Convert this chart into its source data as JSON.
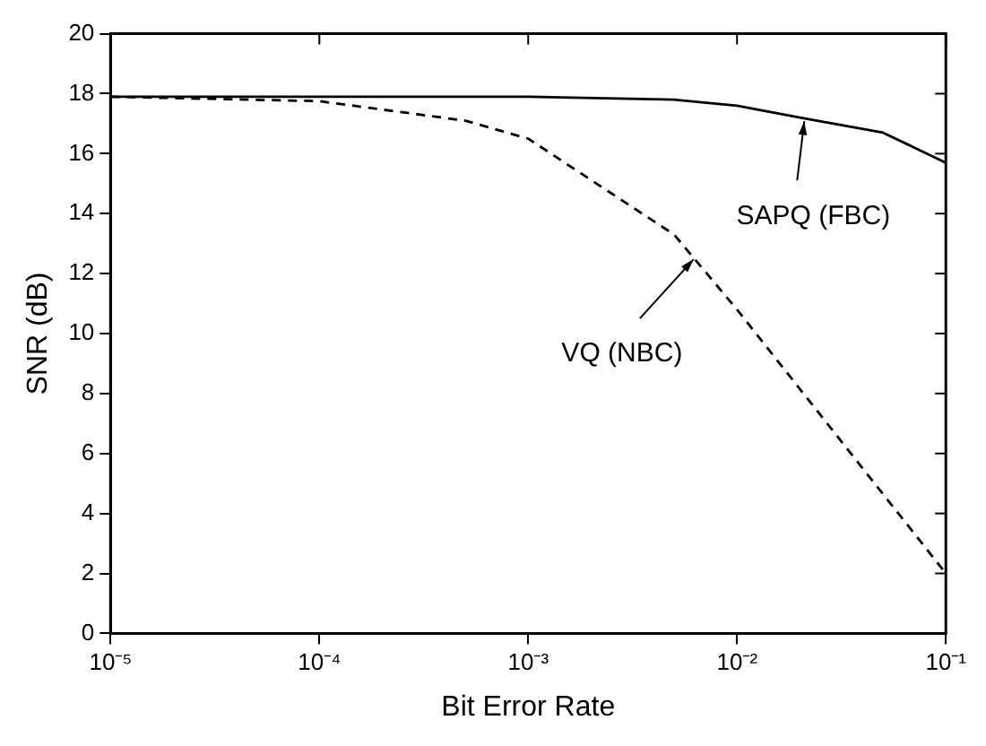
{
  "chart_data": {
    "type": "line",
    "xlabel": "Bit Error Rate",
    "ylabel": "SNR (dB)",
    "log": "x",
    "grid": false,
    "legend": false,
    "marker": "none",
    "xlim": [
      1e-05,
      0.1
    ],
    "ylim": [
      0,
      20
    ],
    "xticks": [
      {
        "value": 1e-05,
        "label": "10⁻⁵"
      },
      {
        "value": 0.0001,
        "label": "10⁻⁴"
      },
      {
        "value": 0.001,
        "label": "10⁻³"
      },
      {
        "value": 0.01,
        "label": "10⁻²"
      },
      {
        "value": 0.1,
        "label": "10⁻¹"
      }
    ],
    "yticks": [
      0,
      2,
      4,
      6,
      8,
      10,
      12,
      14,
      16,
      18,
      20
    ],
    "series": [
      {
        "color": "#000000",
        "line_style": "solid",
        "x": [
          1e-05,
          0.0001,
          0.001,
          0.005,
          0.01,
          0.02,
          0.05,
          0.1
        ],
        "values": [
          17.9,
          17.9,
          17.9,
          17.8,
          17.6,
          17.2,
          16.7,
          15.7
        ]
      },
      {
        "color": "#000000",
        "line_style": "dashed",
        "x": [
          1e-05,
          0.0001,
          0.0005,
          0.001,
          0.005,
          0.01,
          0.04,
          0.1
        ],
        "values": [
          17.9,
          17.75,
          17.1,
          16.5,
          13.3,
          10.8,
          5.5,
          2.0
        ]
      }
    ],
    "annotations": [
      {
        "text": "SAPQ (FBC)",
        "x": 0.021,
        "y": 17.2
      },
      {
        "text": "VQ (NBC)",
        "x": 0.0062,
        "y": 12.6
      }
    ]
  }
}
